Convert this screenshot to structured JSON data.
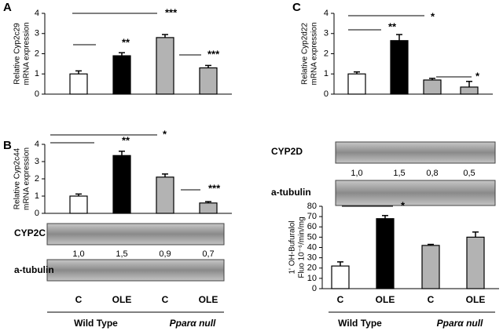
{
  "panels": [
    "A",
    "B",
    "C"
  ],
  "chart_data": [
    {
      "type": "bar",
      "ylabel": [
        "Relative Cyp2c29",
        "mRNA expression"
      ],
      "values": [
        1.0,
        1.9,
        2.8,
        1.3
      ],
      "errors": [
        0.15,
        0.15,
        0.15,
        0.12
      ],
      "colors": [
        "#ffffff",
        "#000000",
        "#b3b3b3",
        "#b3b3b3"
      ],
      "ylim": [
        0,
        4
      ],
      "yticks": [
        0,
        1,
        2,
        3,
        4
      ],
      "annotations": [
        "**",
        "***",
        "***"
      ]
    },
    {
      "type": "bar",
      "ylabel": [
        "Relative Cyp2c44",
        "mRNA expression"
      ],
      "categories": [
        "C",
        "OLE",
        "C",
        "OLE"
      ],
      "groups": [
        "Wild Type",
        "Pparα null"
      ],
      "values": [
        1.0,
        3.35,
        2.1,
        0.6
      ],
      "errors": [
        0.12,
        0.25,
        0.18,
        0.08
      ],
      "colors": [
        "#ffffff",
        "#000000",
        "#b3b3b3",
        "#b3b3b3"
      ],
      "ylim": [
        0,
        4
      ],
      "yticks": [
        0,
        1,
        2,
        3,
        4
      ],
      "annotations": [
        "**",
        "*",
        "***"
      ]
    },
    {
      "type": "bar",
      "ylabel": [
        "Relative Cyp2d22",
        "mRNA expression"
      ],
      "values": [
        1.0,
        2.65,
        0.7,
        0.35
      ],
      "errors": [
        0.1,
        0.3,
        0.08,
        0.28
      ],
      "colors": [
        "#ffffff",
        "#000000",
        "#b3b3b3",
        "#b3b3b3"
      ],
      "ylim": [
        0,
        4
      ],
      "yticks": [
        0,
        1,
        2,
        3,
        4
      ],
      "annotations": [
        "**",
        "*",
        "*"
      ]
    },
    {
      "type": "bar",
      "ylabel": [
        "1' OH-Bufuralol",
        "Fluo 10⁻⁶/min/mg"
      ],
      "categories": [
        "C",
        "OLE",
        "C",
        "OLE"
      ],
      "groups": [
        "Wild Type",
        "Pparα null"
      ],
      "values": [
        22,
        68,
        42,
        50
      ],
      "errors": [
        4,
        3,
        1,
        5
      ],
      "colors": [
        "#ffffff",
        "#000000",
        "#b3b3b3",
        "#b3b3b3"
      ],
      "ylim": [
        0,
        80
      ],
      "yticks": [
        0,
        10,
        20,
        30,
        40,
        50,
        60,
        70,
        80
      ],
      "annotations": [
        "*"
      ]
    }
  ],
  "blots": [
    {
      "labels": [
        "CYP2C",
        "a-tubulin"
      ],
      "values": [
        "1,0",
        "1,5",
        "0,9",
        "0,7"
      ]
    },
    {
      "labels": [
        "CYP2D",
        "a-tubulin"
      ],
      "values": [
        "1,0",
        "1,5",
        "0,8",
        "0,5"
      ]
    }
  ]
}
